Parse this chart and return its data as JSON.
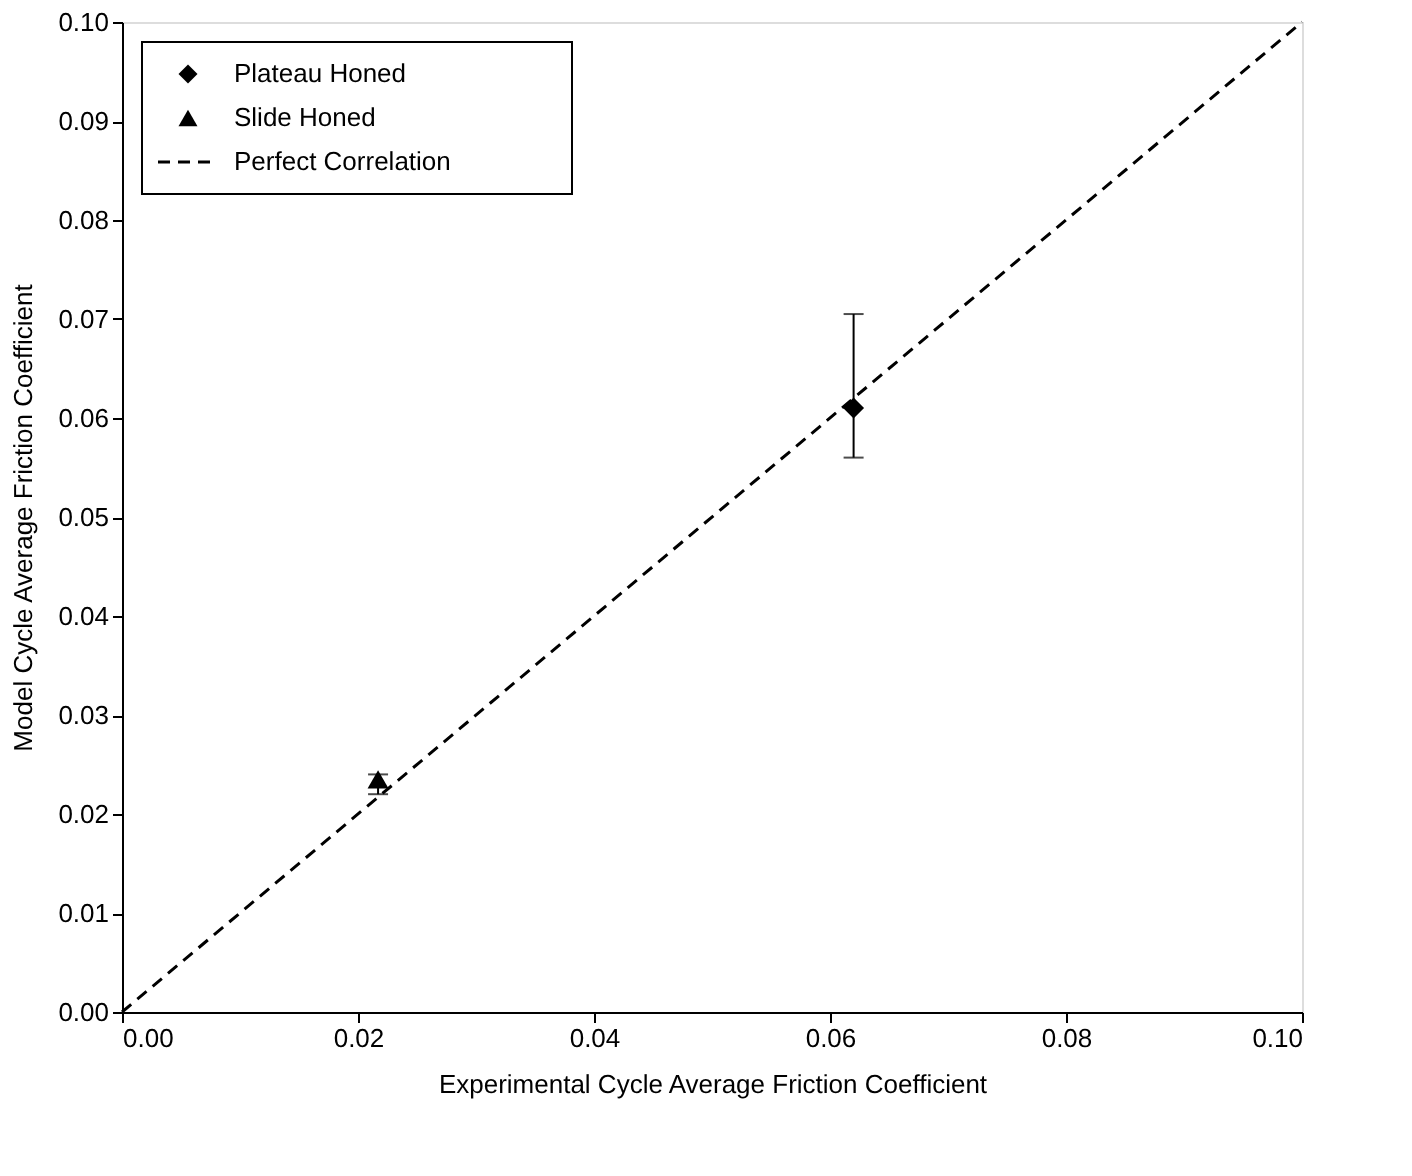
{
  "chart_data": {
    "type": "scatter",
    "xlabel": "Experimental Cycle Average Friction Coefficient",
    "ylabel": "Model Cycle Average Friction Coefficient",
    "xlim": [
      0,
      0.1
    ],
    "ylim": [
      0,
      0.1
    ],
    "xticks": [
      {
        "value": 0,
        "label": "0.00"
      },
      {
        "value": 0.02,
        "label": "0.02"
      },
      {
        "value": 0.04,
        "label": "0.04"
      },
      {
        "value": 0.06,
        "label": "0.06"
      },
      {
        "value": 0.08,
        "label": "0.08"
      },
      {
        "value": 0.1,
        "label": "0.10"
      }
    ],
    "yticks": [
      {
        "value": 0,
        "label": "0.00"
      },
      {
        "value": 0.01,
        "label": "0.01"
      },
      {
        "value": 0.02,
        "label": "0.02"
      },
      {
        "value": 0.03,
        "label": "0.03"
      },
      {
        "value": 0.04,
        "label": "0.04"
      },
      {
        "value": 0.05,
        "label": "0.05"
      },
      {
        "value": 0.06,
        "label": "0.06"
      },
      {
        "value": 0.07,
        "label": "0.07"
      },
      {
        "value": 0.08,
        "label": "0.08"
      },
      {
        "value": 0.09,
        "label": "0.09"
      },
      {
        "value": 0.1,
        "label": "0.10"
      }
    ],
    "grid": false,
    "legend": "top left",
    "series": [
      {
        "name": "Plateau Honed",
        "marker": "diamond",
        "color": "#000000",
        "x": [
          0.062
        ],
        "values": [
          0.061
        ],
        "errors": [
          [
            0.056,
            0.0705
          ]
        ]
      },
      {
        "name": "Slide Honed",
        "marker": "triangle",
        "color": "#000000",
        "x": [
          0.0217
        ],
        "values": [
          0.0235
        ],
        "errors": [
          [
            0.022,
            0.024
          ]
        ]
      },
      {
        "name": "Perfect Correlation",
        "type": "line",
        "line_style": "dashed",
        "marker": "none",
        "color": "#000000",
        "x": [
          0,
          0.1
        ],
        "values": [
          0,
          0.1
        ]
      }
    ]
  }
}
